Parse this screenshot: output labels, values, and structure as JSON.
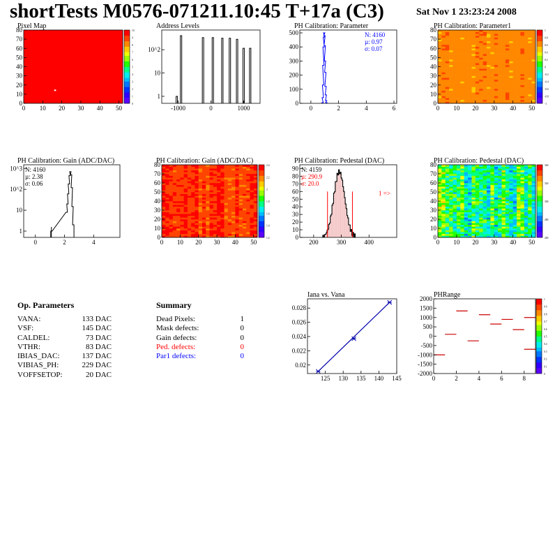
{
  "header": {
    "title": "shortTests M0576-071211.10:45 T+17a (C3)",
    "date": "Sat Nov  1 23:23:24 2008"
  },
  "colors": {
    "hist_red": "#ff0000",
    "stats_blue": "#0000ff",
    "stats_red": "#ff0000",
    "fit_blue": "#0000aa"
  },
  "op_parameters": {
    "title": "Op. Parameters",
    "rows": [
      {
        "name": "VANA:",
        "value": "133 DAC"
      },
      {
        "name": "VSF:",
        "value": "145 DAC"
      },
      {
        "name": "CALDEL:",
        "value": "73 DAC"
      },
      {
        "name": "VTHR:",
        "value": "83 DAC"
      },
      {
        "name": "IBIAS_DAC:",
        "value": "137 DAC"
      },
      {
        "name": "VIBIAS_PH:",
        "value": "229 DAC"
      },
      {
        "name": "VOFFSETOP:",
        "value": "20 DAC"
      }
    ]
  },
  "summary": {
    "title": "Summary",
    "rows": [
      {
        "name": "Dead Pixels:",
        "value": "1",
        "color": "#000000"
      },
      {
        "name": "Mask defects:",
        "value": "0",
        "color": "#000000"
      },
      {
        "name": "Gain defects:",
        "value": "0",
        "color": "#000000"
      },
      {
        "name": "Ped. defects:",
        "value": "0",
        "color": "#ff0000"
      },
      {
        "name": "Par1 defects:",
        "value": "0",
        "color": "#0000ff"
      }
    ]
  },
  "chart_data": [
    {
      "id": "pixelmap",
      "type": "heatmap",
      "title": "Pixel Map",
      "xlim": [
        0,
        52
      ],
      "ylim": [
        0,
        80
      ],
      "xticks": [
        "0",
        "10",
        "20",
        "30",
        "40",
        "50"
      ],
      "yticks": [
        "0",
        "10",
        "20",
        "30",
        "40",
        "50",
        "60",
        "70",
        "80"
      ],
      "zrange": [
        0,
        10
      ],
      "zticks": [
        "0",
        "1",
        "2",
        "3",
        "4",
        "5",
        "6",
        "7",
        "8",
        "9",
        "10"
      ],
      "fill_value": 10,
      "special_pixels": [
        {
          "x": 16,
          "y": 14,
          "value": 0
        }
      ]
    },
    {
      "id": "address",
      "type": "bar",
      "title": "Address Levels",
      "xlim": [
        -1500,
        1500
      ],
      "yscale": "log",
      "ylim": [
        0.5,
        700
      ],
      "xticks": [
        "-1000",
        "0",
        "1000"
      ],
      "ytick_values": [
        1,
        10,
        100
      ],
      "yticks": [
        "1",
        "10",
        "10^2"
      ],
      "peaks": [
        {
          "x": -1020,
          "y": 1
        },
        {
          "x": -890,
          "y": 400
        },
        {
          "x": -220,
          "y": 330
        },
        {
          "x": 80,
          "y": 330
        },
        {
          "x": 370,
          "y": 310
        },
        {
          "x": 600,
          "y": 310
        },
        {
          "x": 820,
          "y": 280
        },
        {
          "x": 1020,
          "y": 115
        },
        {
          "x": 1220,
          "y": 115
        }
      ]
    },
    {
      "id": "phpar",
      "type": "bar",
      "title": "PH Calibration: Parameter",
      "xlim": [
        -0.8,
        6.2
      ],
      "ylim": [
        0,
        520
      ],
      "xticks": [
        "0",
        "2",
        "4",
        "6"
      ],
      "yticks": [
        "0",
        "100",
        "200",
        "300",
        "400",
        "500"
      ],
      "x": [
        0.84,
        0.86,
        0.88,
        0.9,
        0.92,
        0.94,
        0.96,
        0.98,
        1.0,
        1.02,
        1.04,
        1.06,
        1.08,
        1.1,
        1.12
      ],
      "values": [
        5,
        40,
        130,
        270,
        400,
        470,
        500,
        480,
        410,
        300,
        220,
        120,
        60,
        20,
        5
      ],
      "stats": [
        "N: 4160",
        "µ: 0.97",
        "σ: 0.07"
      ],
      "stats_color": "#0000ff"
    },
    {
      "id": "phpar1",
      "type": "heatmap",
      "title": "PH Calibration: Parameter1",
      "xlim": [
        0,
        52
      ],
      "ylim": [
        0,
        80
      ],
      "xticks": [
        "0",
        "10",
        "20",
        "30",
        "40",
        "50"
      ],
      "yticks": [
        "0",
        "10",
        "20",
        "30",
        "40",
        "50",
        "60",
        "70",
        "80"
      ],
      "zrange": [
        -1.0,
        1.0
      ],
      "zticks": [
        "-1",
        "-0.8",
        "-0.6",
        "-0.4",
        "-0.2",
        "0",
        "0.2",
        "0.4",
        "0.6",
        "0.8",
        "1"
      ],
      "value_range": [
        0.55,
        0.75
      ]
    },
    {
      "id": "gain",
      "type": "bar",
      "title": "PH Calibration: Gain (ADC/DAC)",
      "xlim": [
        -0.8,
        5.8
      ],
      "yscale": "log",
      "ylim": [
        0.5,
        1500
      ],
      "xticks": [
        "0",
        "2",
        "4"
      ],
      "ytick_values": [
        1,
        10,
        100,
        1000
      ],
      "yticks": [
        "1",
        "10",
        "10^2",
        "10^3"
      ],
      "x": [
        1.1,
        2.15,
        2.2,
        2.25,
        2.3,
        2.35,
        2.4,
        2.45,
        2.5,
        2.55,
        2.6
      ],
      "values": [
        1,
        8,
        20,
        60,
        180,
        450,
        700,
        500,
        120,
        15,
        2
      ],
      "stats": [
        "N: 4160",
        "µ: 2.38",
        "σ: 0.06"
      ],
      "stats_color": "#000000"
    },
    {
      "id": "gainmap",
      "type": "heatmap",
      "title": "PH Calibration: Gain (ADC/DAC)",
      "xlim": [
        0,
        52
      ],
      "ylim": [
        0,
        80
      ],
      "xticks": [
        "0",
        "10",
        "20",
        "30",
        "40",
        "50"
      ],
      "yticks": [
        "0",
        "10",
        "20",
        "30",
        "40",
        "50",
        "60",
        "70",
        "80"
      ],
      "zrange": [
        1.05,
        2.5
      ],
      "zticks": [
        "1.2",
        "1.4",
        "1.6",
        "1.8",
        "2",
        "2.2",
        "2.4"
      ],
      "value_range": [
        2.25,
        2.5
      ]
    },
    {
      "id": "pedestal",
      "type": "bar",
      "title": "PH Calibration: Pedestal (DAC)",
      "xlim": [
        150,
        500
      ],
      "ylim": [
        0,
        95
      ],
      "xticks": [
        "200",
        "300",
        "400"
      ],
      "yticks": [
        "0",
        "10",
        "20",
        "30",
        "40",
        "50",
        "60",
        "70",
        "80",
        "90"
      ],
      "mean": 290.9,
      "sigma": 20.0,
      "peak": 86,
      "cut_lines": [
        250,
        340
      ],
      "stats": [
        "N: 4159",
        "µ: 290.9",
        "σ: 20.0"
      ],
      "stats_colors": [
        "#000000",
        "#ff0000",
        "#ff0000"
      ],
      "annotation": "1 =>"
    },
    {
      "id": "pedmap",
      "type": "heatmap",
      "title": "PH Calibration: Pedestal (DAC)",
      "xlim": [
        0,
        52
      ],
      "ylim": [
        0,
        80
      ],
      "xticks": [
        "0",
        "10",
        "20",
        "30",
        "40",
        "50"
      ],
      "yticks": [
        "0",
        "10",
        "20",
        "30",
        "40",
        "50",
        "60",
        "70",
        "80"
      ],
      "zrange": [
        240,
        345
      ],
      "zticks": [
        "260",
        "280",
        "300",
        "320",
        "340"
      ],
      "value_range": [
        265,
        320
      ]
    },
    {
      "id": "iana",
      "type": "scatter",
      "title": "Iana vs. Vana",
      "xlim": [
        120,
        145
      ],
      "ylim": [
        0.0188,
        0.0293
      ],
      "xticks": [
        "125",
        "130",
        "135",
        "140",
        "145"
      ],
      "yticks": [
        "0.02",
        "0.022",
        "0.024",
        "0.026",
        "0.028"
      ],
      "ytick_values": [
        0.02,
        0.022,
        0.024,
        0.026,
        0.028
      ],
      "xtick_values": [
        125,
        130,
        135,
        140,
        145
      ],
      "x": [
        123,
        133,
        143
      ],
      "y": [
        0.0191,
        0.0237,
        0.0288
      ]
    },
    {
      "id": "phrange",
      "type": "line",
      "title": "PHRange",
      "xlim": [
        0,
        9
      ],
      "ylim": [
        -2000,
        2000
      ],
      "xticks": [
        "0",
        "2",
        "4",
        "6",
        "8"
      ],
      "yticks": [
        "-2000",
        "-1500",
        "-1000",
        "-500",
        "0",
        "500",
        "1000",
        "1500",
        "2000"
      ],
      "xtick_values": [
        0,
        2,
        4,
        6,
        8
      ],
      "ytick_values": [
        -2000,
        -1500,
        -1000,
        -500,
        0,
        500,
        1000,
        1500,
        2000
      ],
      "zrange": [
        0,
        1
      ],
      "zticks": [
        "0",
        "0.1",
        "0.2",
        "0.3",
        "0.4",
        "0.5",
        "0.6",
        "0.7",
        "0.8",
        "0.9",
        "1"
      ],
      "segments": [
        {
          "x": 0,
          "y": -1000
        },
        {
          "x": 1,
          "y": 100
        },
        {
          "x": 2,
          "y": 1350
        },
        {
          "x": 3,
          "y": -250
        },
        {
          "x": 4,
          "y": 1150
        },
        {
          "x": 5,
          "y": 650
        },
        {
          "x": 6,
          "y": 900
        },
        {
          "x": 7,
          "y": 350
        },
        {
          "x": 8,
          "y": -700
        },
        {
          "x": 8,
          "y": 1000
        }
      ]
    }
  ]
}
